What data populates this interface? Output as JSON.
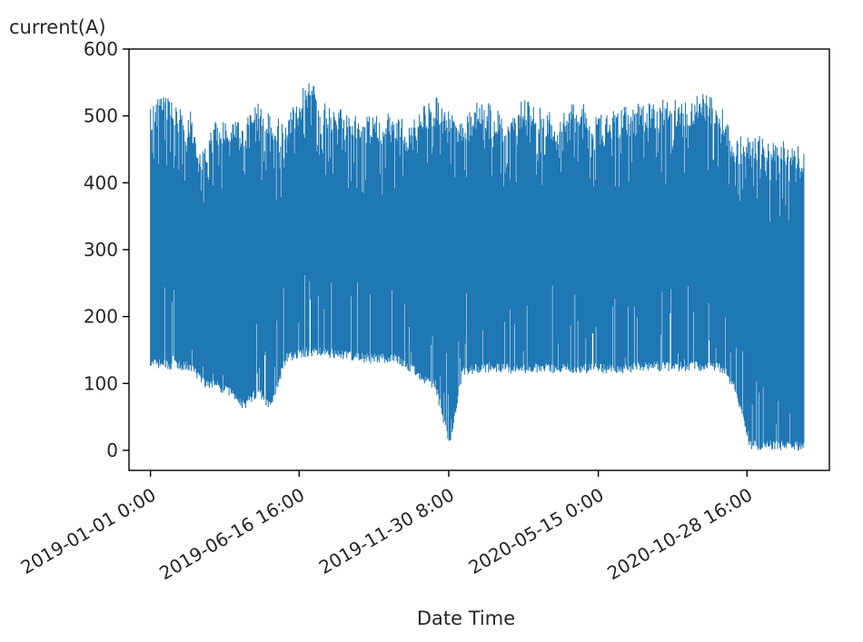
{
  "chart_data": {
    "type": "line",
    "title": "",
    "ylabel": "current(A)",
    "xlabel": "Date Time",
    "ylim": [
      -30,
      600
    ],
    "xlim": [
      "2018-12-08",
      "2021-01-28"
    ],
    "y_ticks": [
      0,
      100,
      200,
      300,
      400,
      500,
      600
    ],
    "x_ticks": [
      {
        "date": "2019-01-01",
        "label": "2019-01-01 0:00"
      },
      {
        "date": "2019-06-16",
        "label": "2019-06-16 16:00"
      },
      {
        "date": "2019-11-30",
        "label": "2019-11-30 8:00"
      },
      {
        "date": "2020-05-15",
        "label": "2020-05-15 0:00"
      },
      {
        "date": "2020-10-28",
        "label": "2020-10-28 16:00"
      }
    ],
    "grid": false,
    "series": [
      {
        "color": "#1f77b4",
        "x": [
          "2019-01-01",
          "2019-01-15",
          "2019-02-01",
          "2019-02-15",
          "2019-03-01",
          "2019-03-15",
          "2019-04-01",
          "2019-04-15",
          "2019-05-01",
          "2019-05-15",
          "2019-06-01",
          "2019-06-15",
          "2019-07-01",
          "2019-07-15",
          "2019-08-01",
          "2019-08-15",
          "2019-09-01",
          "2019-09-15",
          "2019-10-01",
          "2019-10-15",
          "2019-11-01",
          "2019-11-15",
          "2019-12-01",
          "2019-12-15",
          "2020-01-01",
          "2020-01-15",
          "2020-02-01",
          "2020-02-15",
          "2020-03-01",
          "2020-03-15",
          "2020-04-01",
          "2020-04-15",
          "2020-05-01",
          "2020-05-15",
          "2020-06-01",
          "2020-06-15",
          "2020-07-01",
          "2020-07-15",
          "2020-08-01",
          "2020-08-15",
          "2020-09-01",
          "2020-09-15",
          "2020-10-01",
          "2020-10-15",
          "2020-11-01",
          "2020-11-15",
          "2020-12-01",
          "2020-12-15",
          "2020-12-31"
        ],
        "max": [
          510,
          540,
          520,
          510,
          450,
          500,
          500,
          490,
          520,
          510,
          490,
          530,
          570,
          520,
          515,
          510,
          500,
          505,
          505,
          490,
          520,
          530,
          505,
          500,
          525,
          520,
          500,
          525,
          525,
          510,
          500,
          520,
          520,
          500,
          510,
          515,
          520,
          520,
          530,
          520,
          530,
          535,
          510,
          470,
          480,
          470,
          460,
          465,
          465
        ],
        "min": [
          122,
          122,
          120,
          118,
          95,
          90,
          80,
          60,
          80,
          60,
          130,
          138,
          140,
          138,
          136,
          134,
          130,
          130,
          130,
          120,
          100,
          90,
          0,
          110,
          115,
          115,
          115,
          115,
          115,
          115,
          115,
          115,
          115,
          115,
          115,
          115,
          118,
          118,
          118,
          118,
          118,
          118,
          115,
          85,
          0,
          0,
          0,
          0,
          0
        ]
      }
    ]
  }
}
